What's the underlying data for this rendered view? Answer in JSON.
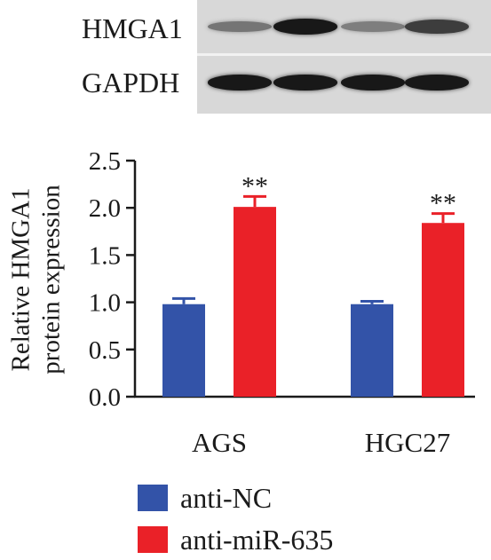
{
  "blot": {
    "rows": [
      {
        "label": "HMGA1",
        "band_intensity": [
          0.45,
          0.95,
          0.4,
          0.75
        ]
      },
      {
        "label": "GAPDH",
        "band_intensity": [
          0.95,
          0.95,
          0.95,
          0.95
        ]
      }
    ]
  },
  "colors": {
    "anti_NC": "#3353a8",
    "anti_miR_635": "#ea2128",
    "axis": "#1a1a1a"
  },
  "chart_data": {
    "type": "bar",
    "categories": [
      "AGS",
      "HGC27"
    ],
    "series": [
      {
        "name": "anti-NC",
        "values": [
          0.98,
          0.98
        ],
        "errors": [
          0.06,
          0.03
        ],
        "color": "#3353a8"
      },
      {
        "name": "anti-miR-635",
        "values": [
          2.01,
          1.84
        ],
        "errors": [
          0.11,
          0.1
        ],
        "color": "#ea2128",
        "annotations": [
          "**",
          "**"
        ]
      }
    ],
    "ylabel_lines": [
      "Relative HMGA1",
      "protein expression"
    ],
    "ylim": [
      0,
      2.5
    ],
    "yticks": [
      "0.0",
      "0.5",
      "1.0",
      "1.5",
      "2.0",
      "2.5"
    ],
    "legend_position": "bottom-left",
    "grid": false
  }
}
